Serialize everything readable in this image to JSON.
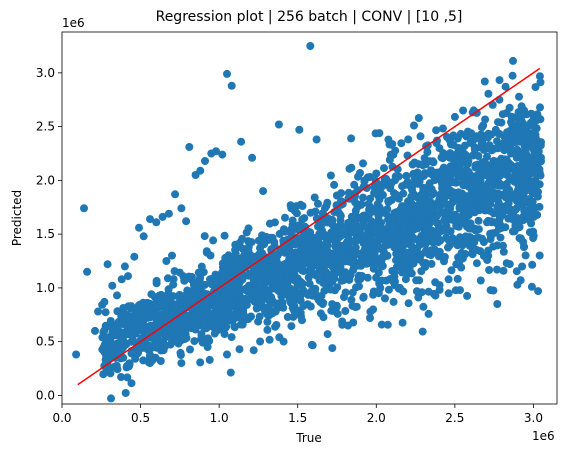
{
  "chart_data": {
    "type": "scatter",
    "title": "Regression plot | 256 batch | CONV | [10 ,5]",
    "xlabel": "True",
    "ylabel": "Predicted",
    "xlim": [
      0,
      3150000
    ],
    "ylim": [
      -80000,
      3380000
    ],
    "x_ticks": [
      0,
      500000,
      1000000,
      1500000,
      2000000,
      2500000,
      3000000
    ],
    "x_tick_labels": [
      "0.0",
      "0.5",
      "1.0",
      "1.5",
      "2.0",
      "2.5",
      "3.0"
    ],
    "y_ticks": [
      0,
      500000,
      1000000,
      1500000,
      2000000,
      2500000,
      3000000
    ],
    "y_tick_labels": [
      "0.0",
      "0.5",
      "1.0",
      "1.5",
      "2.0",
      "2.5",
      "3.0"
    ],
    "x_offset_label": "1e6",
    "y_offset_label": "1e6",
    "grid": false,
    "point_color": "#1f77b4",
    "line_color": "#ff0000",
    "fit_line": {
      "x": [
        100000,
        3040000
      ],
      "y": [
        100000,
        3040000
      ]
    },
    "series": [
      {
        "values": [
          [
            90000,
            380000
          ],
          [
            140000,
            1740000
          ],
          [
            160000,
            1150000
          ],
          [
            210000,
            600000
          ],
          [
            230000,
            780000
          ],
          [
            270000,
            870000
          ],
          [
            290000,
            1220000
          ],
          [
            320000,
            1020000
          ],
          [
            350000,
            930000
          ],
          [
            380000,
            1080000
          ],
          [
            420000,
            1110000
          ],
          [
            460000,
            1290000
          ],
          [
            490000,
            1560000
          ],
          [
            520000,
            1480000
          ],
          [
            560000,
            1640000
          ],
          [
            600000,
            1610000
          ],
          [
            640000,
            1660000
          ],
          [
            680000,
            1690000
          ],
          [
            720000,
            1870000
          ],
          [
            760000,
            1740000
          ],
          [
            790000,
            1620000
          ],
          [
            810000,
            2310000
          ],
          [
            850000,
            2050000
          ],
          [
            880000,
            2090000
          ],
          [
            910000,
            2180000
          ],
          [
            950000,
            2250000
          ],
          [
            980000,
            2270000
          ],
          [
            1020000,
            2240000
          ],
          [
            1050000,
            2990000
          ],
          [
            1080000,
            2880000
          ],
          [
            1140000,
            2360000
          ],
          [
            1210000,
            2210000
          ],
          [
            1380000,
            2520000
          ],
          [
            1510000,
            2470000
          ],
          [
            1580000,
            3250000
          ],
          [
            1620000,
            2380000
          ],
          [
            1840000,
            2390000
          ],
          [
            2020000,
            2440000
          ],
          [
            2240000,
            2510000
          ],
          [
            2500000,
            2590000
          ],
          [
            2680000,
            2510000
          ],
          [
            2850000,
            2460000
          ],
          [
            2970000,
            2510000
          ],
          [
            3010000,
            2230000
          ],
          [
            3030000,
            2180000
          ],
          [
            2980000,
            1800000
          ],
          [
            2920000,
            1460000
          ],
          [
            2830000,
            1230000
          ],
          [
            2640000,
            1230000
          ],
          [
            2460000,
            1080000
          ],
          [
            2290000,
            960000
          ],
          [
            2110000,
            870000
          ],
          [
            1960000,
            720000
          ],
          [
            1820000,
            650000
          ],
          [
            1690000,
            570000
          ],
          [
            1590000,
            470000
          ],
          [
            1410000,
            500000
          ],
          [
            1220000,
            420000
          ],
          [
            1050000,
            380000
          ],
          [
            940000,
            330000
          ],
          [
            760000,
            300000
          ],
          [
            560000,
            300000
          ],
          [
            430000,
            290000
          ],
          [
            290000,
            310000
          ],
          [
            2770000,
            850000
          ],
          [
            2990000,
            1010000
          ],
          [
            3030000,
            970000
          ],
          [
            1980000,
            800000
          ],
          [
            1720000,
            440000
          ],
          [
            2150000,
            1000000
          ],
          [
            1280000,
            1900000
          ],
          [
            700000,
            1300000
          ],
          [
            400000,
            1200000
          ],
          [
            2600000,
            1600000
          ],
          [
            2950000,
            1900000
          ]
        ]
      }
    ]
  }
}
